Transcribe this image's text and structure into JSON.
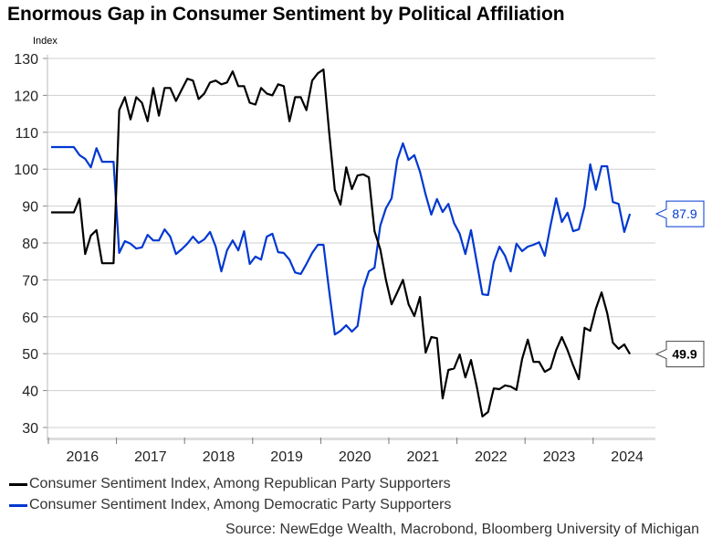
{
  "chart_data": {
    "type": "line",
    "title": "Enormous Gap in Consumer Sentiment by Political Affiliation",
    "ylabel": "Index",
    "xlabel": "",
    "ylim": [
      30,
      130
    ],
    "yticks": [
      30,
      40,
      50,
      60,
      70,
      80,
      90,
      100,
      110,
      120,
      130
    ],
    "xticks": [
      "2016",
      "2017",
      "2018",
      "2019",
      "2020",
      "2021",
      "2022",
      "2023",
      "2024"
    ],
    "x_start": "2016-01",
    "x_frequency": "monthly",
    "grid": true,
    "legend_position": "bottom-left",
    "series": [
      {
        "name": "Consumer Sentiment Index, Among Republican Party Supporters",
        "color": "#000000",
        "last_value_label": "49.9",
        "values": [
          88.3,
          88.3,
          88.3,
          88.3,
          88.3,
          92,
          77,
          82,
          83.5,
          74.5,
          74.5,
          74.5,
          116,
          119.5,
          113.5,
          119.5,
          118,
          113,
          122,
          114.5,
          122,
          122,
          118.5,
          121.5,
          124.5,
          124,
          119,
          120.5,
          123.5,
          124,
          123,
          123.5,
          126.5,
          122.5,
          122.5,
          118,
          117.5,
          122,
          120.5,
          120,
          123,
          122.5,
          113,
          119.5,
          119.5,
          116,
          124,
          126,
          127,
          110,
          94.4,
          90.4,
          100.5,
          94.6,
          98.3,
          98.6,
          97.8,
          83.2,
          78.3,
          70,
          63.4,
          66.6,
          70,
          63.4,
          60.2,
          65.4,
          50.3,
          54.5,
          54.2,
          37.9,
          45.6,
          46,
          49.8,
          43.6,
          48.3,
          41.1,
          33,
          34.2,
          40.6,
          40.4,
          41.4,
          41.1,
          40.2,
          48.6,
          53.8,
          47.8,
          47.8,
          45.1,
          46,
          51,
          54.5,
          51,
          46.8,
          43.1,
          57,
          56.2,
          62.2,
          66.6,
          61,
          53,
          51.3,
          52.5,
          49.9
        ]
      },
      {
        "name": "Consumer Sentiment Index, Among Democratic Party Supporters",
        "color": "#0038D1",
        "last_value_label": "87.9",
        "values": [
          106,
          106,
          106,
          106,
          106,
          103.8,
          102.8,
          100.5,
          105.7,
          102,
          102,
          102,
          77.3,
          80.5,
          79.8,
          78.5,
          78.8,
          82.2,
          80.7,
          80.7,
          83.7,
          81.7,
          77,
          78.3,
          79.8,
          81.7,
          80,
          81,
          83,
          79,
          72.3,
          78,
          80.7,
          78,
          83.2,
          74.3,
          76.3,
          75.5,
          81.7,
          82.5,
          77.5,
          77.3,
          75.5,
          72,
          71.6,
          74.3,
          77.3,
          79.5,
          79.5,
          67,
          55.2,
          56.2,
          57.7,
          56,
          57.5,
          67.6,
          72.3,
          73.3,
          84.7,
          89.4,
          92.1,
          102.5,
          107,
          102.5,
          103.8,
          99.3,
          93.1,
          87.7,
          91.9,
          88.4,
          90.6,
          85.4,
          82.5,
          77,
          83.5,
          74.8,
          66.1,
          65.9,
          74.8,
          79,
          76.5,
          72.3,
          79.8,
          77.8,
          79,
          79.5,
          80.2,
          76.5,
          84.7,
          92.1,
          85.7,
          88.2,
          83.2,
          83.7,
          89.9,
          101.3,
          94.4,
          100.8,
          100.8,
          91.1,
          90.6,
          83,
          87.9
        ]
      }
    ],
    "source": "Source: NewEdge Wealth, Macrobond, Bloomberg University of Michigan"
  }
}
